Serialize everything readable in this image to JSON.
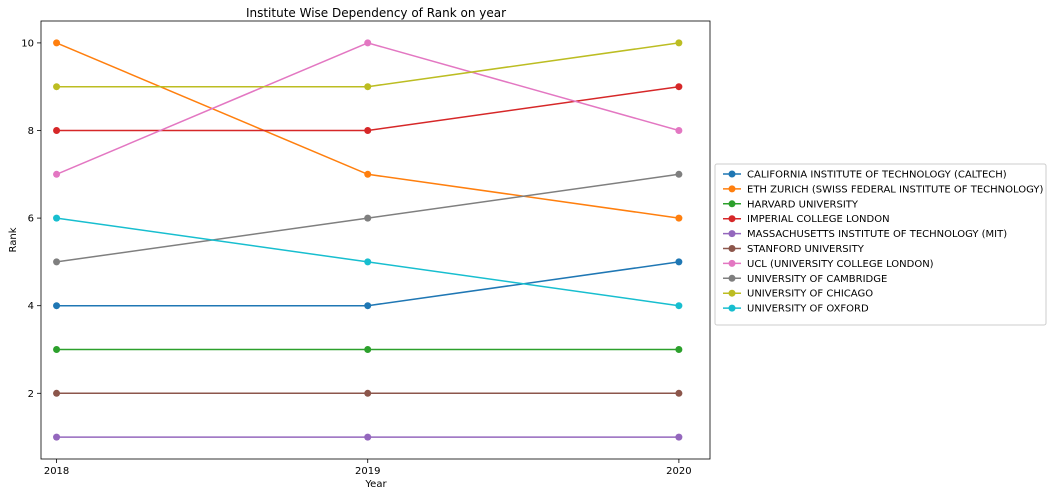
{
  "chart_data": {
    "type": "line",
    "title": "Institute Wise Dependency of Rank on year",
    "xlabel": "Year",
    "ylabel": "Rank",
    "x": [
      "2018",
      "2019",
      "2020"
    ],
    "xlim": [
      2017.95,
      2020.1
    ],
    "ylim": [
      0.5,
      10.5
    ],
    "yticks": [
      "2",
      "4",
      "6",
      "8",
      "10"
    ],
    "grid": false,
    "legend_position": "center-right outside",
    "markers": "circle",
    "series": [
      {
        "name": "CALIFORNIA INSTITUTE OF TECHNOLOGY (CALTECH)",
        "color": "#1f77b4",
        "values": [
          4,
          4,
          5
        ]
      },
      {
        "name": "ETH ZURICH (SWISS FEDERAL INSTITUTE OF TECHNOLOGY)",
        "color": "#ff7f0e",
        "values": [
          10,
          7,
          6
        ]
      },
      {
        "name": "HARVARD UNIVERSITY",
        "color": "#2ca02c",
        "values": [
          3,
          3,
          3
        ]
      },
      {
        "name": "IMPERIAL COLLEGE LONDON",
        "color": "#d62728",
        "values": [
          8,
          8,
          9
        ]
      },
      {
        "name": "MASSACHUSETTS INSTITUTE OF TECHNOLOGY (MIT)",
        "color": "#9467bd",
        "values": [
          1,
          1,
          1
        ]
      },
      {
        "name": "STANFORD UNIVERSITY",
        "color": "#8c564b",
        "values": [
          2,
          2,
          2
        ]
      },
      {
        "name": "UCL (UNIVERSITY COLLEGE LONDON)",
        "color": "#e377c2",
        "values": [
          7,
          10,
          8
        ]
      },
      {
        "name": "UNIVERSITY OF CAMBRIDGE",
        "color": "#7f7f7f",
        "values": [
          5,
          6,
          7
        ]
      },
      {
        "name": "UNIVERSITY OF CHICAGO",
        "color": "#bcbd22",
        "values": [
          9,
          9,
          10
        ]
      },
      {
        "name": "UNIVERSITY OF OXFORD",
        "color": "#17becf",
        "values": [
          6,
          5,
          4
        ]
      }
    ]
  }
}
